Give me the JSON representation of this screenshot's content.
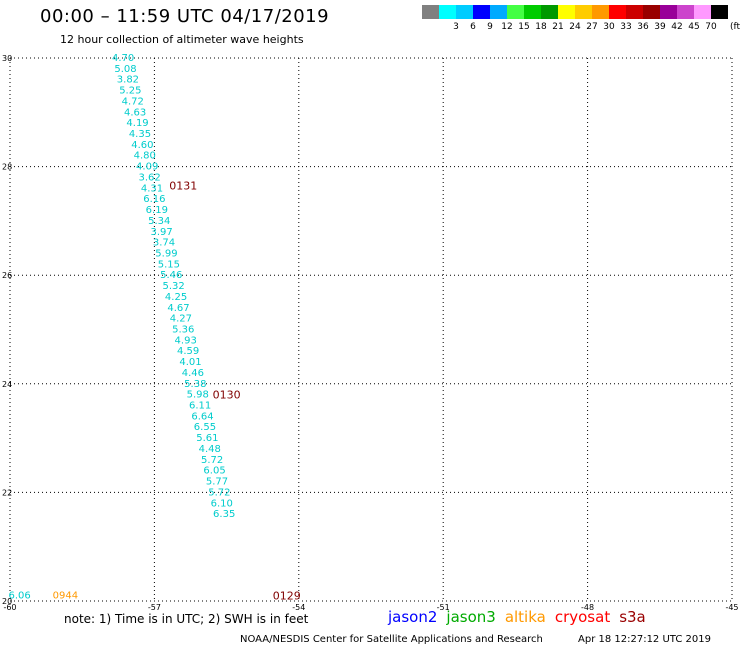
{
  "header": {
    "title": "00:00 – 11:59 UTC 04/17/2019",
    "subtitle": "12 hour collection of altimeter wave heights"
  },
  "color_scale": {
    "unit": "(ft)",
    "bins": [
      {
        "label": "",
        "color": "#808080"
      },
      {
        "label": "3",
        "color": "#00ffff"
      },
      {
        "label": "6",
        "color": "#00ccff"
      },
      {
        "label": "9",
        "color": "#0000ff"
      },
      {
        "label": "12",
        "color": "#00aaff"
      },
      {
        "label": "15",
        "color": "#44ff44"
      },
      {
        "label": "18",
        "color": "#00cc00"
      },
      {
        "label": "21",
        "color": "#009900"
      },
      {
        "label": "24",
        "color": "#ffff00"
      },
      {
        "label": "27",
        "color": "#ffcc00"
      },
      {
        "label": "30",
        "color": "#ff9900"
      },
      {
        "label": "33",
        "color": "#ff0000"
      },
      {
        "label": "36",
        "color": "#cc0000"
      },
      {
        "label": "39",
        "color": "#990000"
      },
      {
        "label": "42",
        "color": "#990099"
      },
      {
        "label": "45",
        "color": "#cc44cc"
      },
      {
        "label": "70",
        "color": "#ff99ff"
      },
      {
        "label": "",
        "color": "#000000"
      }
    ]
  },
  "chart_data": {
    "type": "scatter",
    "title": "00:00 – 11:59 UTC 04/17/2019",
    "subtitle": "12 hour collection of altimeter wave heights",
    "xlim": [
      -60,
      -45
    ],
    "ylim": [
      20,
      30
    ],
    "xticks": [
      "-60",
      "-57",
      "-54",
      "-51",
      "-48",
      "-45"
    ],
    "xtick_values": [
      -60,
      -57,
      -54,
      -51,
      -48,
      -45
    ],
    "yticks": [
      "20",
      "22",
      "24",
      "26",
      "28",
      "30"
    ],
    "ytick_values": [
      20,
      22,
      24,
      26,
      28,
      30
    ],
    "grid": "dotted",
    "series": [
      {
        "color": "#00cccc",
        "points": [
          {
            "x": -57.65,
            "y": 30.0,
            "label": "4.70"
          },
          {
            "x": -57.6,
            "y": 29.8,
            "label": "5.08"
          },
          {
            "x": -57.55,
            "y": 29.6,
            "label": "3.82"
          },
          {
            "x": -57.5,
            "y": 29.4,
            "label": "5.25"
          },
          {
            "x": -57.45,
            "y": 29.2,
            "label": "4.72"
          },
          {
            "x": -57.4,
            "y": 29.0,
            "label": "4.63"
          },
          {
            "x": -57.35,
            "y": 28.8,
            "label": "4.19"
          },
          {
            "x": -57.3,
            "y": 28.6,
            "label": "4.35"
          },
          {
            "x": -57.25,
            "y": 28.4,
            "label": "4.60"
          },
          {
            "x": -57.2,
            "y": 28.2,
            "label": "4.80"
          },
          {
            "x": -57.15,
            "y": 28.0,
            "label": "4.09"
          },
          {
            "x": -57.1,
            "y": 27.8,
            "label": "3.62"
          },
          {
            "x": -57.05,
            "y": 27.6,
            "label": "4.31"
          },
          {
            "x": -57.0,
            "y": 27.4,
            "label": "6.16"
          },
          {
            "x": -56.95,
            "y": 27.2,
            "label": "6.19"
          },
          {
            "x": -56.9,
            "y": 27.0,
            "label": "5.34"
          },
          {
            "x": -56.85,
            "y": 26.8,
            "label": "3.97"
          },
          {
            "x": -56.8,
            "y": 26.6,
            "label": "3.74"
          },
          {
            "x": -56.75,
            "y": 26.4,
            "label": "5.99"
          },
          {
            "x": -56.7,
            "y": 26.2,
            "label": "5.15"
          },
          {
            "x": -56.65,
            "y": 26.0,
            "label": "5.46"
          },
          {
            "x": -56.6,
            "y": 25.8,
            "label": "5.32"
          },
          {
            "x": -56.55,
            "y": 25.6,
            "label": "4.25"
          },
          {
            "x": -56.5,
            "y": 25.4,
            "label": "4.67"
          },
          {
            "x": -56.45,
            "y": 25.2,
            "label": "4.27"
          },
          {
            "x": -56.4,
            "y": 25.0,
            "label": "5.36"
          },
          {
            "x": -56.35,
            "y": 24.8,
            "label": "4.93"
          },
          {
            "x": -56.3,
            "y": 24.6,
            "label": "4.59"
          },
          {
            "x": -56.25,
            "y": 24.4,
            "label": "4.01"
          },
          {
            "x": -56.2,
            "y": 24.2,
            "label": "4.46"
          },
          {
            "x": -56.15,
            "y": 24.0,
            "label": "5.38"
          },
          {
            "x": -56.1,
            "y": 23.8,
            "label": "5.98"
          },
          {
            "x": -56.05,
            "y": 23.6,
            "label": "6.11"
          },
          {
            "x": -56.0,
            "y": 23.4,
            "label": "6.64"
          },
          {
            "x": -55.95,
            "y": 23.2,
            "label": "6.55"
          },
          {
            "x": -55.9,
            "y": 23.0,
            "label": "5.61"
          },
          {
            "x": -55.85,
            "y": 22.8,
            "label": "4.48"
          },
          {
            "x": -55.8,
            "y": 22.6,
            "label": "5.72"
          },
          {
            "x": -55.75,
            "y": 22.4,
            "label": "6.05"
          },
          {
            "x": -55.7,
            "y": 22.2,
            "label": "5.77"
          },
          {
            "x": -55.65,
            "y": 22.0,
            "label": "5.72"
          },
          {
            "x": -55.6,
            "y": 21.8,
            "label": "6.10"
          },
          {
            "x": -55.55,
            "y": 21.6,
            "label": "6.35"
          }
        ]
      },
      {
        "color": "#00cccc",
        "points": [
          {
            "x": -59.8,
            "y": 20.1,
            "label": "6.06"
          }
        ]
      },
      {
        "color": "#ff9900",
        "points": [
          {
            "x": -58.85,
            "y": 20.1,
            "label": "0944"
          }
        ]
      }
    ],
    "annotations": [
      {
        "text": "0131",
        "x": -56.4,
        "y": 27.65,
        "color": "#800000"
      },
      {
        "text": "0130",
        "x": -55.5,
        "y": 23.8,
        "color": "#800000"
      },
      {
        "text": "0129",
        "x": -54.25,
        "y": 20.1,
        "color": "#800000"
      }
    ]
  },
  "footer": {
    "note": "note: 1) Time is in UTC; 2) SWH is in feet",
    "satellites": [
      {
        "name": "jason2",
        "color": "#0000ff"
      },
      {
        "name": "jason3",
        "color": "#00aa00"
      },
      {
        "name": "altika",
        "color": "#ff9900"
      },
      {
        "name": "cryosat",
        "color": "#ff0000"
      },
      {
        "name": "s3a",
        "color": "#990000"
      }
    ],
    "credit": "NOAA/NESDIS Center for Satellite Applications and Research",
    "timestamp": "Apr 18 12:27:12 UTC 2019"
  }
}
